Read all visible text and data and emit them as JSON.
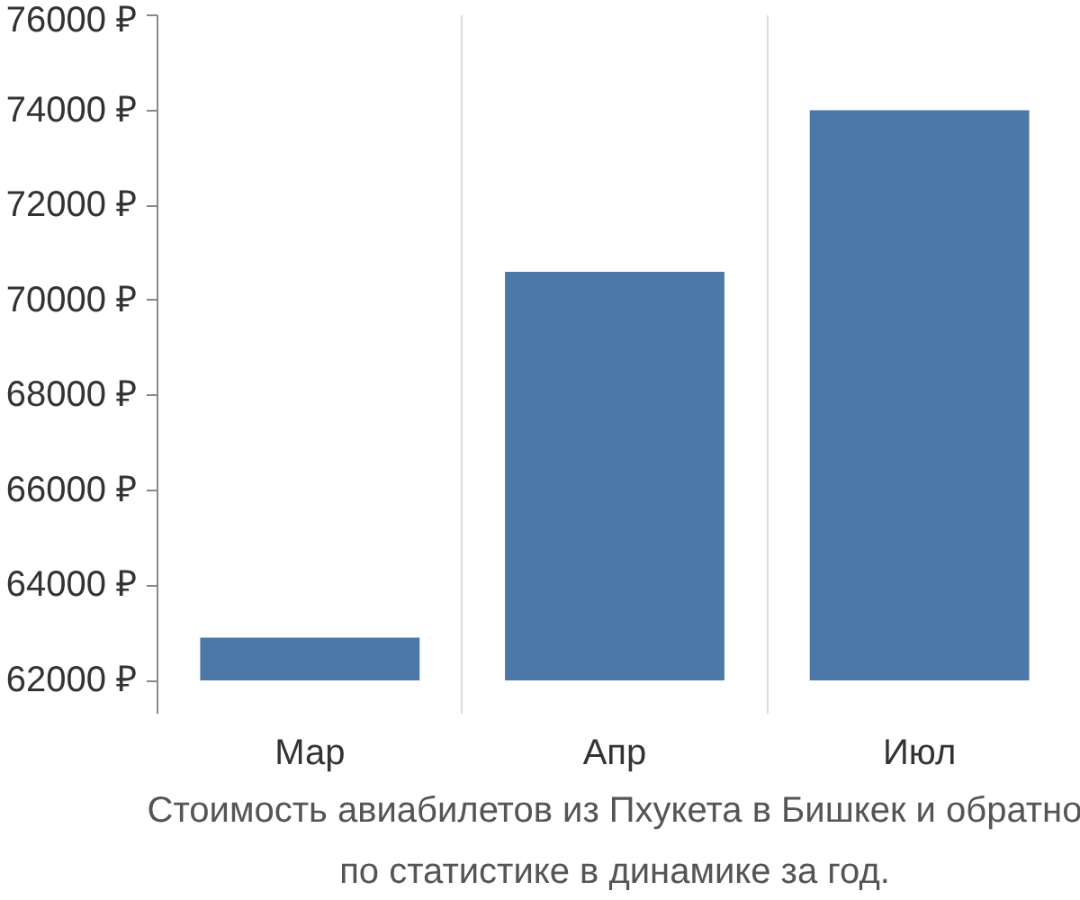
{
  "chart_data": {
    "type": "bar",
    "categories": [
      "Мар",
      "Апр",
      "Июл"
    ],
    "values": [
      900,
      8600,
      12000
    ],
    "base": [
      62000,
      62000,
      62000
    ],
    "color": "#4c78a8",
    "ylim": [
      61300,
      76000
    ],
    "yticks": [
      {
        "value": 62000,
        "label": "62000 ₽"
      },
      {
        "value": 64000,
        "label": "64000 ₽"
      },
      {
        "value": 66000,
        "label": "66000 ₽"
      },
      {
        "value": 68000,
        "label": "68000 ₽"
      },
      {
        "value": 70000,
        "label": "70000 ₽"
      },
      {
        "value": 72000,
        "label": "72000 ₽"
      },
      {
        "value": 74000,
        "label": "74000 ₽"
      },
      {
        "value": 76000,
        "label": "76000 ₽"
      }
    ],
    "grid": "x",
    "annotations": [
      "Стоимость авиабилетов из Пхукета в Бишкек и обратно",
      "по статистике в динамике за год."
    ]
  }
}
